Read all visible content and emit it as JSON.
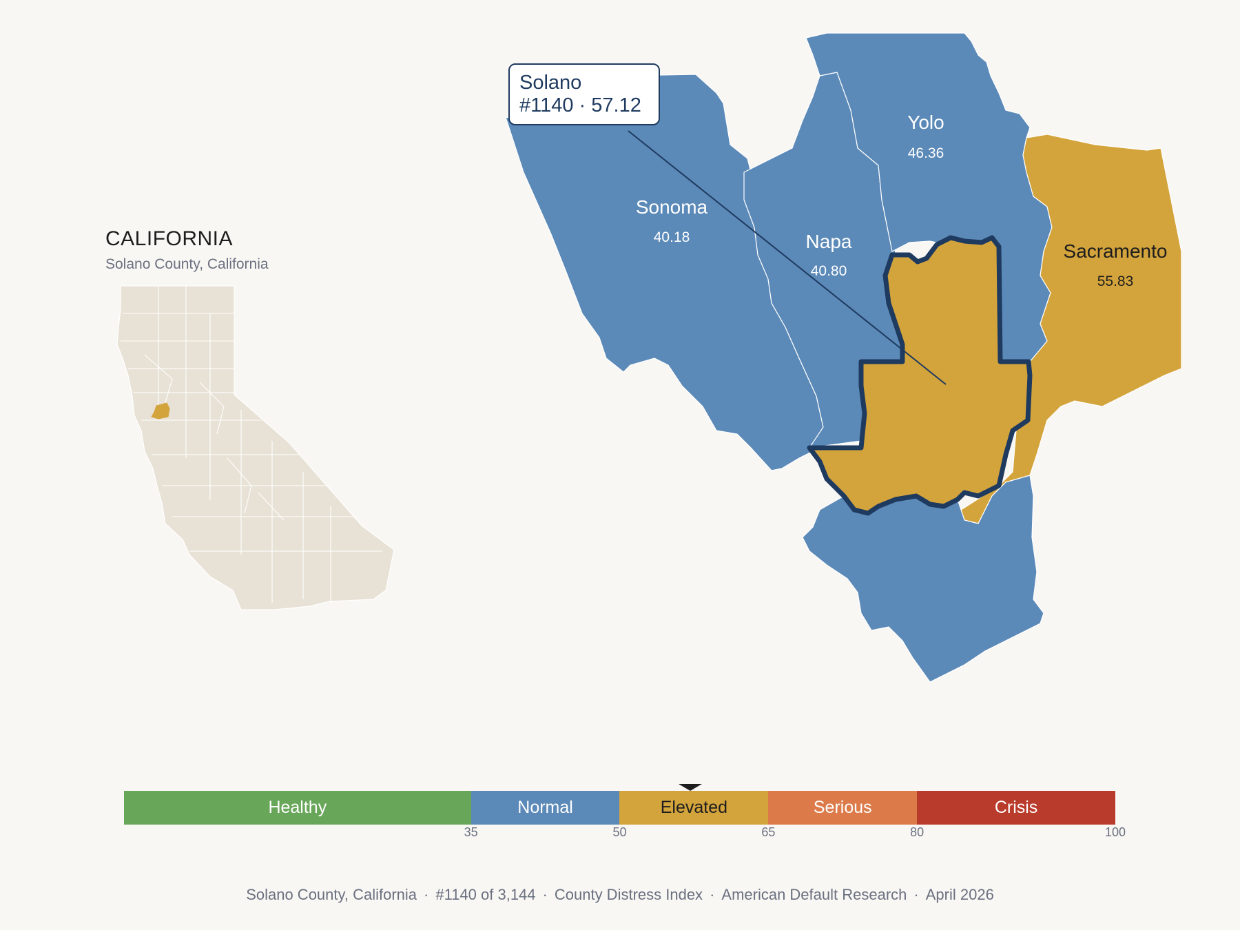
{
  "inset": {
    "title": "CALIFORNIA",
    "subtitle": "Solano County, California",
    "base_color": "#e8e2d6",
    "highlight_color": "#d4a43c"
  },
  "callout": {
    "line1": "Solano",
    "line2": "#1140 · 57.12"
  },
  "counties": [
    {
      "name": "Sonoma",
      "value": "40.18",
      "category": "Normal"
    },
    {
      "name": "Napa",
      "value": "40.80",
      "category": "Normal"
    },
    {
      "name": "Yolo",
      "value": "46.36",
      "category": "Normal"
    },
    {
      "name": "Sacramento",
      "value": "55.83",
      "category": "Elevated"
    },
    {
      "name": "Solano",
      "value": "57.12",
      "category": "Elevated",
      "selected": true
    },
    {
      "name": "",
      "value": "",
      "category": "Normal"
    }
  ],
  "legend": {
    "segments": [
      {
        "label": "Healthy",
        "from": 0,
        "to": 35,
        "color": "#68a659"
      },
      {
        "label": "Normal",
        "from": 35,
        "to": 50,
        "color": "#5b89b8"
      },
      {
        "label": "Elevated",
        "from": 50,
        "to": 65,
        "color": "#d4a43c"
      },
      {
        "label": "Serious",
        "from": 65,
        "to": 80,
        "color": "#dc7a49"
      },
      {
        "label": "Crisis",
        "from": 80,
        "to": 100,
        "color": "#b93b2b"
      }
    ],
    "ticks": [
      "35",
      "50",
      "65",
      "80",
      "100"
    ],
    "marker_value": 57.12
  },
  "colors": {
    "normal": "#5b89b8",
    "elevated": "#d4a43c",
    "selected_outline": "#1f3a5f",
    "background": "#f9f7f3"
  },
  "footer": {
    "parts": [
      "Solano County, California",
      "#1140 of 3,144",
      "County Distress Index",
      "American Default Research",
      "April 2026"
    ]
  }
}
